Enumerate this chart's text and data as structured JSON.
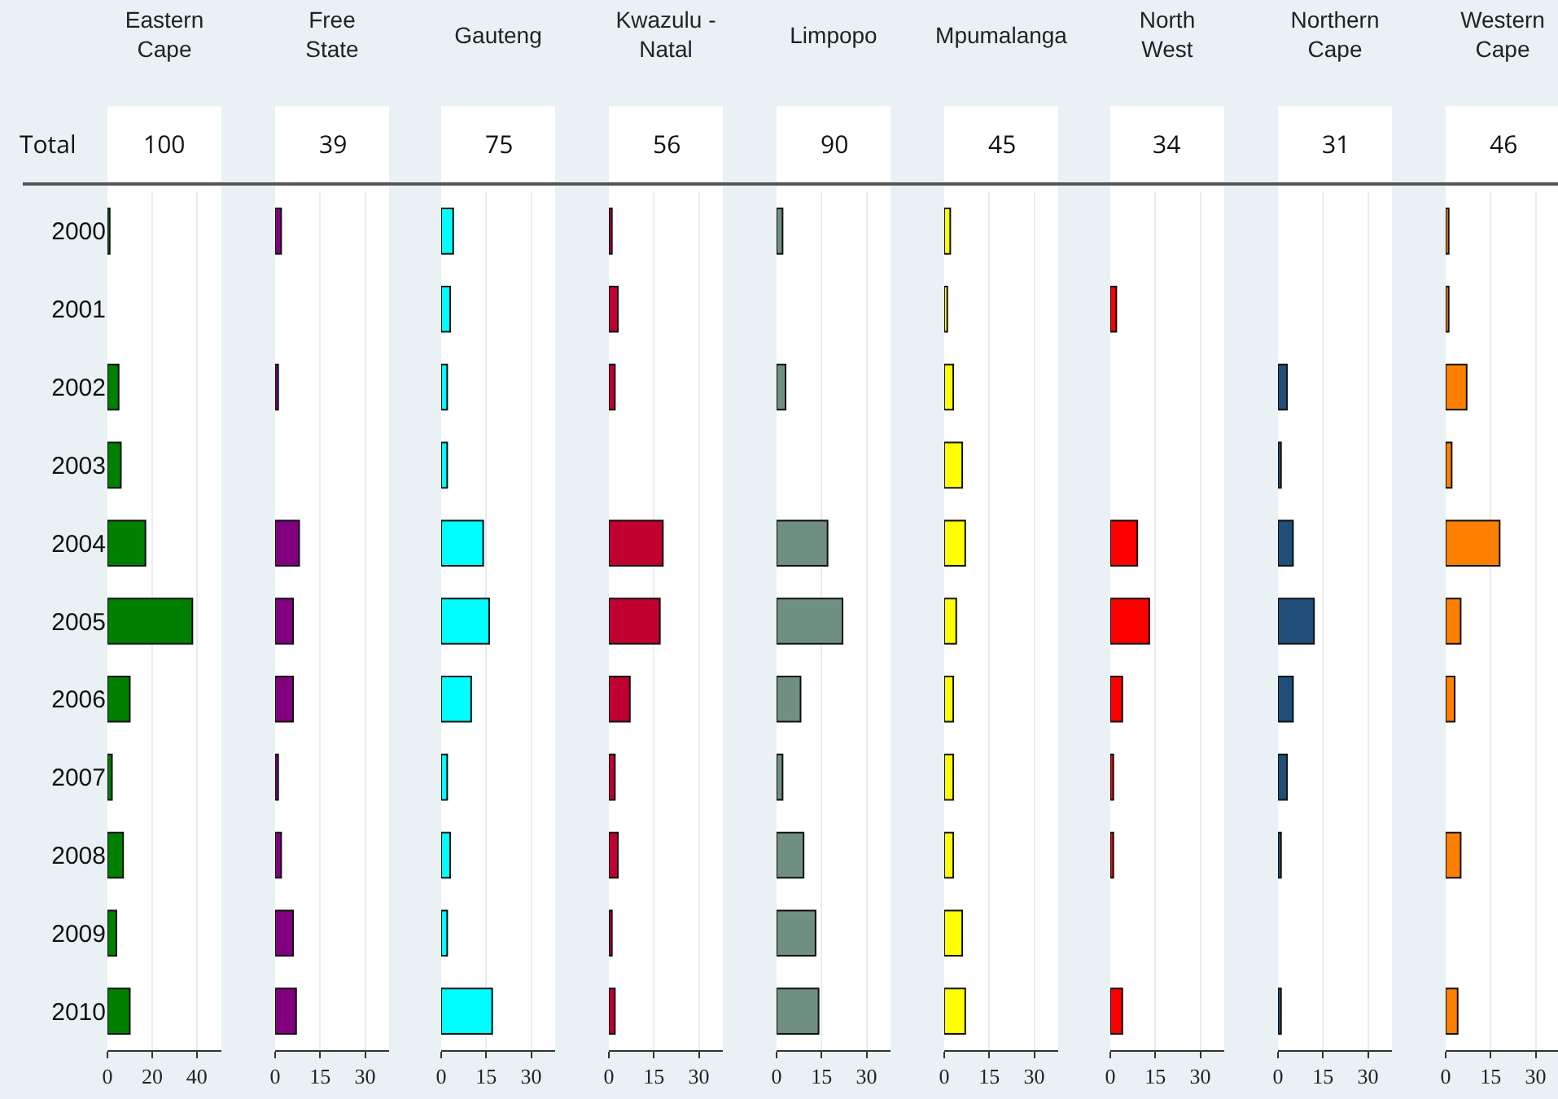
{
  "chart_data": [
    {
      "type": "bar",
      "orientation": "horizontal",
      "title": "Eastern Cape",
      "annotations": [
        "Total",
        "100"
      ],
      "categories": [
        "2000",
        "2001",
        "2002",
        "2003",
        "2004",
        "2005",
        "2006",
        "2007",
        "2008",
        "2009",
        "2010"
      ],
      "values": [
        1,
        null,
        5,
        6,
        17,
        38,
        10,
        2,
        7,
        4,
        10
      ],
      "color": "#008000",
      "xlim": [
        0,
        51
      ],
      "xticks": [
        0,
        20,
        40
      ],
      "grid": "x"
    },
    {
      "type": "bar",
      "orientation": "horizontal",
      "title": "Free State",
      "annotations": [
        "39"
      ],
      "categories": [
        "2000",
        "2001",
        "2002",
        "2003",
        "2004",
        "2005",
        "2006",
        "2007",
        "2008",
        "2009",
        "2010"
      ],
      "values": [
        2,
        null,
        1,
        null,
        8,
        6,
        6,
        1,
        2,
        6,
        7
      ],
      "color": "#800080",
      "xlim": [
        0,
        38
      ],
      "xticks": [
        0,
        15,
        30
      ],
      "grid": "x",
      "tick_labels": "x"
    },
    {
      "type": "bar",
      "orientation": "horizontal",
      "title": "Gauteng",
      "annotations": [
        "75"
      ],
      "categories": [
        "2000",
        "2001",
        "2002",
        "2003",
        "2004",
        "2005",
        "2006",
        "2007",
        "2008",
        "2009",
        "2010"
      ],
      "values": [
        4,
        3,
        2,
        2,
        14,
        16,
        10,
        2,
        3,
        2,
        17
      ],
      "color": "#00ffff",
      "xlim": [
        0,
        38
      ],
      "xticks": [
        0,
        15,
        30
      ],
      "grid": "x",
      "tick_labels": "x"
    },
    {
      "type": "bar",
      "orientation": "horizontal",
      "title": "Kwazulu - Natal",
      "annotations": [
        "56"
      ],
      "categories": [
        "2000",
        "2001",
        "2002",
        "2003",
        "2004",
        "2005",
        "2006",
        "2007",
        "2008",
        "2009",
        "2010"
      ],
      "values": [
        1,
        3,
        2,
        null,
        18,
        17,
        7,
        2,
        3,
        1,
        2
      ],
      "color": "#c00030",
      "xlim": [
        0,
        38
      ],
      "xticks": [
        0,
        15,
        30
      ],
      "grid": "x",
      "tick_labels": "x"
    },
    {
      "type": "bar",
      "orientation": "horizontal",
      "title": "Limpopo",
      "annotations": [
        "90"
      ],
      "categories": [
        "2000",
        "2001",
        "2002",
        "2003",
        "2004",
        "2005",
        "2006",
        "2007",
        "2008",
        "2009",
        "2010"
      ],
      "values": [
        2,
        null,
        3,
        null,
        17,
        22,
        8,
        2,
        9,
        13,
        14
      ],
      "color": "#6f8f80",
      "xlim": [
        0,
        38
      ],
      "xticks": [
        0,
        15,
        30
      ],
      "grid": "x",
      "tick_labels": "x"
    },
    {
      "type": "bar",
      "orientation": "horizontal",
      "title": "Mpumalanga",
      "annotations": [
        "45"
      ],
      "categories": [
        "2000",
        "2001",
        "2002",
        "2003",
        "2004",
        "2005",
        "2006",
        "2007",
        "2008",
        "2009",
        "2010"
      ],
      "values": [
        2,
        1,
        3,
        6,
        7,
        4,
        3,
        3,
        3,
        6,
        7
      ],
      "color": "#ffff00",
      "xlim": [
        0,
        38
      ],
      "xticks": [
        0,
        15,
        30
      ],
      "grid": "x",
      "tick_labels": "x"
    },
    {
      "type": "bar",
      "orientation": "horizontal",
      "title": "North West",
      "annotations": [
        "34"
      ],
      "categories": [
        "2000",
        "2001",
        "2002",
        "2003",
        "2004",
        "2005",
        "2006",
        "2007",
        "2008",
        "2009",
        "2010"
      ],
      "values": [
        null,
        2,
        null,
        null,
        9,
        13,
        4,
        1,
        1,
        null,
        4
      ],
      "color": "#ff0000",
      "xlim": [
        0,
        38
      ],
      "xticks": [
        0,
        15,
        30
      ],
      "grid": "x",
      "tick_labels": "x"
    },
    {
      "type": "bar",
      "orientation": "horizontal",
      "title": "Northern Cape",
      "annotations": [
        "31"
      ],
      "categories": [
        "2000",
        "2001",
        "2002",
        "2003",
        "2004",
        "2005",
        "2006",
        "2007",
        "2008",
        "2009",
        "2010"
      ],
      "values": [
        null,
        null,
        3,
        1,
        5,
        12,
        5,
        3,
        1,
        null,
        1
      ],
      "color": "#1f4e79",
      "xlim": [
        0,
        38
      ],
      "xticks": [
        0,
        15,
        30
      ],
      "grid": "x",
      "tick_labels": "x"
    },
    {
      "type": "bar",
      "orientation": "horizontal",
      "title": "Western Cape",
      "annotations": [
        "46"
      ],
      "categories": [
        "2000",
        "2001",
        "2002",
        "2003",
        "2004",
        "2005",
        "2006",
        "2007",
        "2008",
        "2009",
        "2010"
      ],
      "values": [
        1,
        1,
        7,
        2,
        18,
        5,
        3,
        null,
        5,
        null,
        4
      ],
      "color": "#ff8000",
      "xlim": [
        0,
        38
      ],
      "xticks": [
        0,
        15,
        30
      ],
      "grid": "x",
      "tick_labels": "x"
    }
  ]
}
